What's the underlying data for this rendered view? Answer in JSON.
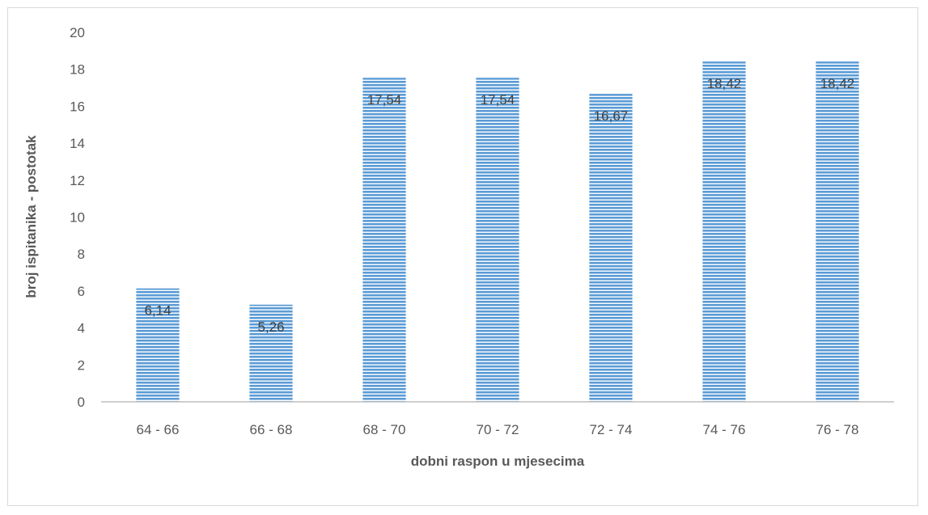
{
  "chart_data": {
    "type": "bar",
    "title": "",
    "xlabel": "dobni raspon u mjesecima",
    "ylabel": "broj ispitanika - postotak",
    "categories": [
      "64 - 66",
      "66 - 68",
      "68 - 70",
      "70 - 72",
      "72 - 74",
      "74 - 76",
      "76 - 78"
    ],
    "values": [
      6.14,
      5.26,
      17.54,
      17.54,
      16.67,
      18.42,
      18.42
    ],
    "data_labels": [
      "6,14",
      "5,26",
      "17,54",
      "17,54",
      "16,67",
      "18,42",
      "18,42"
    ],
    "ylim": [
      0,
      20
    ],
    "yticks": [
      0,
      2,
      4,
      6,
      8,
      10,
      12,
      14,
      16,
      18,
      20
    ],
    "grid": false,
    "legend": "none",
    "bar_color": "#5b9bd5",
    "bar_pattern": "horizontal-stripes"
  }
}
